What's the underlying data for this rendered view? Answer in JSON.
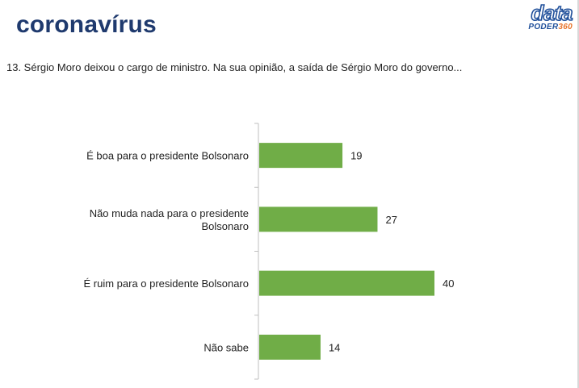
{
  "header": {
    "title": "coronavírus",
    "logo_top": "data",
    "logo_bottom_a": "PODER",
    "logo_bottom_b": "360"
  },
  "question": "13. Sérgio Moro deixou o cargo de ministro. Na sua opinião, a saída de Sérgio Moro do governo...",
  "colors": {
    "bar": "#70ad47",
    "title": "#1f3a6e",
    "logo_blue": "#1f4f9a",
    "logo_orange": "#e8742b"
  },
  "chart_data": {
    "type": "bar",
    "orientation": "horizontal",
    "categories": [
      [
        "É boa para o presidente Bolsonaro"
      ],
      [
        "Não muda nada para o presidente",
        "Bolsonaro"
      ],
      [
        "É ruim para o presidente Bolsonaro"
      ],
      [
        "Não sabe"
      ]
    ],
    "values": [
      19,
      27,
      40,
      14
    ],
    "xlim": [
      0,
      40
    ],
    "grid": false,
    "legend": "none"
  }
}
